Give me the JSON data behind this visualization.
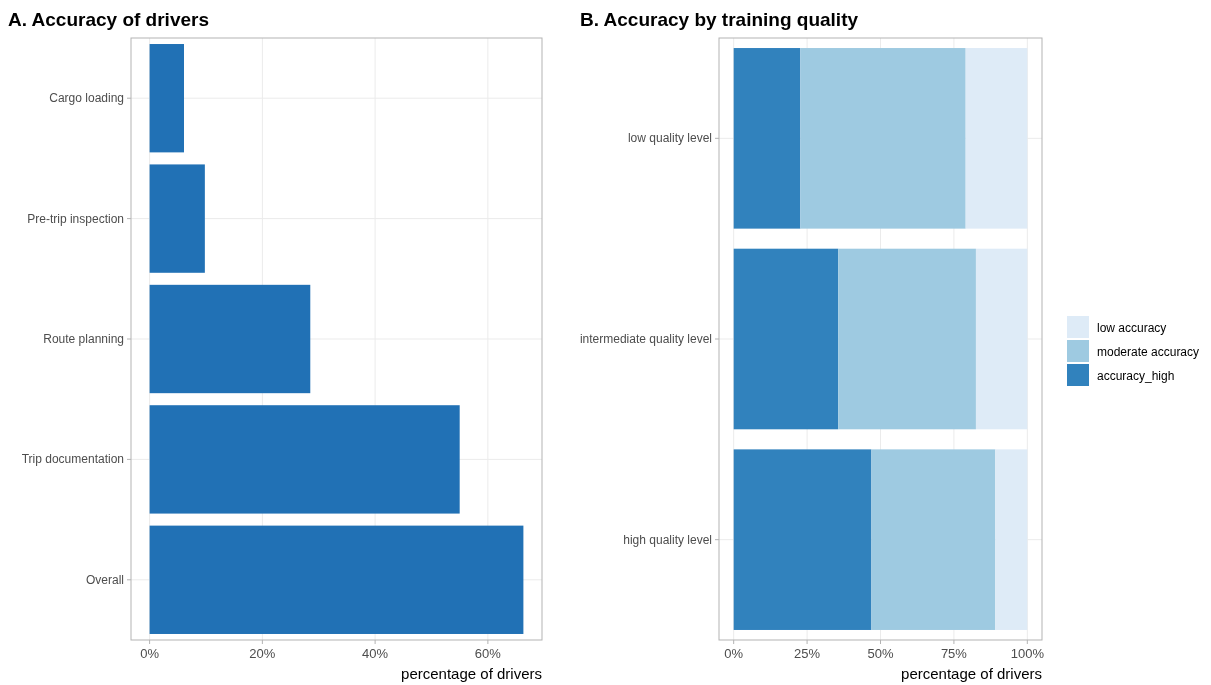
{
  "chart_data": [
    {
      "type": "bar",
      "orientation": "horizontal",
      "title": "A. Accuracy of drivers",
      "xlabel": "percentage of drivers",
      "categories": [
        "Cargo loading",
        "Pre-trip inspection",
        "Route planning",
        "Trip documentation",
        "Overall"
      ],
      "values": [
        6.1,
        9.8,
        28.5,
        55.0,
        66.3
      ],
      "color": "#2171b5",
      "xlim": [
        -3.3,
        69.6
      ],
      "xticks": [
        {
          "value": 0,
          "label": "0%"
        },
        {
          "value": 20,
          "label": "20%"
        },
        {
          "value": 40,
          "label": "40%"
        },
        {
          "value": 60,
          "label": "60%"
        }
      ],
      "grid": true,
      "legend": false
    },
    {
      "type": "bar",
      "orientation": "horizontal",
      "stacked": true,
      "title": "B. Accuracy by training quality",
      "xlabel": "percentage of drivers",
      "categories": [
        "low quality level",
        "intermediate quality level",
        "high quality level"
      ],
      "series": [
        {
          "name": "accuracy_high",
          "color": "#3182bd",
          "values": [
            22.7,
            35.6,
            46.9
          ]
        },
        {
          "name": "moderate accuracy",
          "color": "#9ecae1",
          "values": [
            56.3,
            46.9,
            42.2
          ]
        },
        {
          "name": "low accuracy",
          "color": "#deebf7",
          "values": [
            21.0,
            17.5,
            10.9
          ]
        }
      ],
      "xlim": [
        -5,
        105
      ],
      "xticks": [
        {
          "value": 0,
          "label": "0%"
        },
        {
          "value": 25,
          "label": "25%"
        },
        {
          "value": 50,
          "label": "50%"
        },
        {
          "value": 75,
          "label": "75%"
        },
        {
          "value": 100,
          "label": "100%"
        }
      ],
      "grid": true,
      "legend": "right"
    }
  ]
}
